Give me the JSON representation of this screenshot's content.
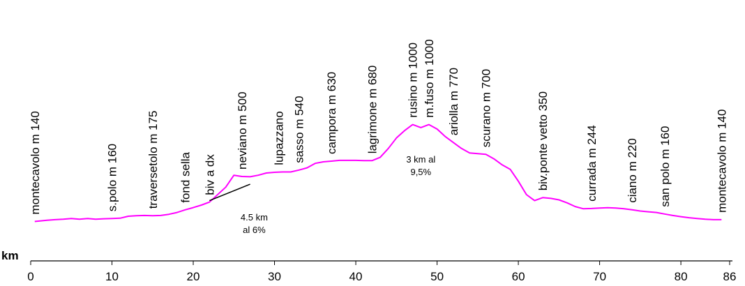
{
  "chart_data": {
    "type": "line",
    "title": "",
    "xlabel": "km",
    "ylabel": "",
    "xlim": [
      0,
      86
    ],
    "ylim": [
      0,
      1000
    ],
    "grid": false,
    "line_color": "#ff00ff",
    "x_ticks": [
      0,
      10,
      20,
      30,
      40,
      50,
      60,
      70,
      80,
      86
    ],
    "series": [
      {
        "x": [
          0.5,
          2,
          3,
          4,
          5,
          6,
          7,
          8,
          9,
          10,
          11,
          12,
          13,
          14,
          15,
          16,
          17,
          18,
          19,
          20,
          21,
          22,
          24,
          25,
          26,
          27,
          28,
          29,
          30,
          31,
          32,
          33,
          34,
          35,
          36,
          37,
          38,
          39,
          40,
          41,
          42,
          43,
          44,
          45,
          46,
          47,
          48,
          49,
          50,
          51,
          52,
          53,
          54,
          55,
          56,
          57,
          58,
          59,
          60,
          61,
          62,
          63,
          64,
          65,
          66,
          67,
          68,
          69,
          70,
          71,
          72,
          73,
          74,
          75,
          76,
          77,
          78,
          79,
          80,
          81,
          82,
          83,
          84,
          85
        ],
        "y": [
          150,
          158,
          162,
          165,
          170,
          165,
          170,
          165,
          168,
          170,
          172,
          185,
          188,
          190,
          188,
          190,
          198,
          210,
          228,
          243,
          260,
          280,
          380,
          460,
          452,
          450,
          460,
          475,
          480,
          482,
          482,
          495,
          510,
          540,
          550,
          555,
          560,
          560,
          560,
          558,
          558,
          580,
          640,
          710,
          760,
          800,
          780,
          800,
          770,
          720,
          680,
          640,
          610,
          605,
          600,
          570,
          530,
          500,
          420,
          330,
          290,
          310,
          305,
          295,
          275,
          250,
          235,
          237,
          240,
          242,
          240,
          235,
          228,
          220,
          215,
          210,
          200,
          190,
          182,
          175,
          170,
          165,
          162,
          162
        ]
      }
    ],
    "places": [
      {
        "label": "montecavolo m 140",
        "km": 0.5
      },
      {
        "label": "s.polo m 160",
        "km": 10
      },
      {
        "label": "traversetolo m 175",
        "km": 15
      },
      {
        "label": "fond sella",
        "km": 19
      },
      {
        "label": "biv a dx",
        "km": 22
      },
      {
        "label": "neviano m 500",
        "km": 26
      },
      {
        "label": "lupazzano",
        "km": 30.5
      },
      {
        "label": "sasso m 540",
        "km": 33
      },
      {
        "label": "campora m 630",
        "km": 37
      },
      {
        "label": "lagrimone m 680",
        "km": 42
      },
      {
        "label": "rusino m 1000",
        "km": 47
      },
      {
        "label": "m.fuso m 1000",
        "km": 49
      },
      {
        "label": "ariolla m 770",
        "km": 52
      },
      {
        "label": "scurano m 700",
        "km": 56
      },
      {
        "label": "biv.ponte vetto 350",
        "km": 63
      },
      {
        "label": "currada m 244",
        "km": 69
      },
      {
        "label": "ciano m 220",
        "km": 74
      },
      {
        "label": "san polo m 160",
        "km": 78
      },
      {
        "label": "montecavolo m 140",
        "km": 85
      }
    ],
    "annotations": [
      {
        "lines": [
          "4.5 km",
          "al 6%"
        ],
        "km": 27.5
      },
      {
        "lines": [
          "3 km al",
          "9,5%"
        ],
        "km": 48
      }
    ],
    "gradient_segment": {
      "x": [
        22,
        27
      ],
      "y": [
        290,
        400
      ]
    }
  }
}
